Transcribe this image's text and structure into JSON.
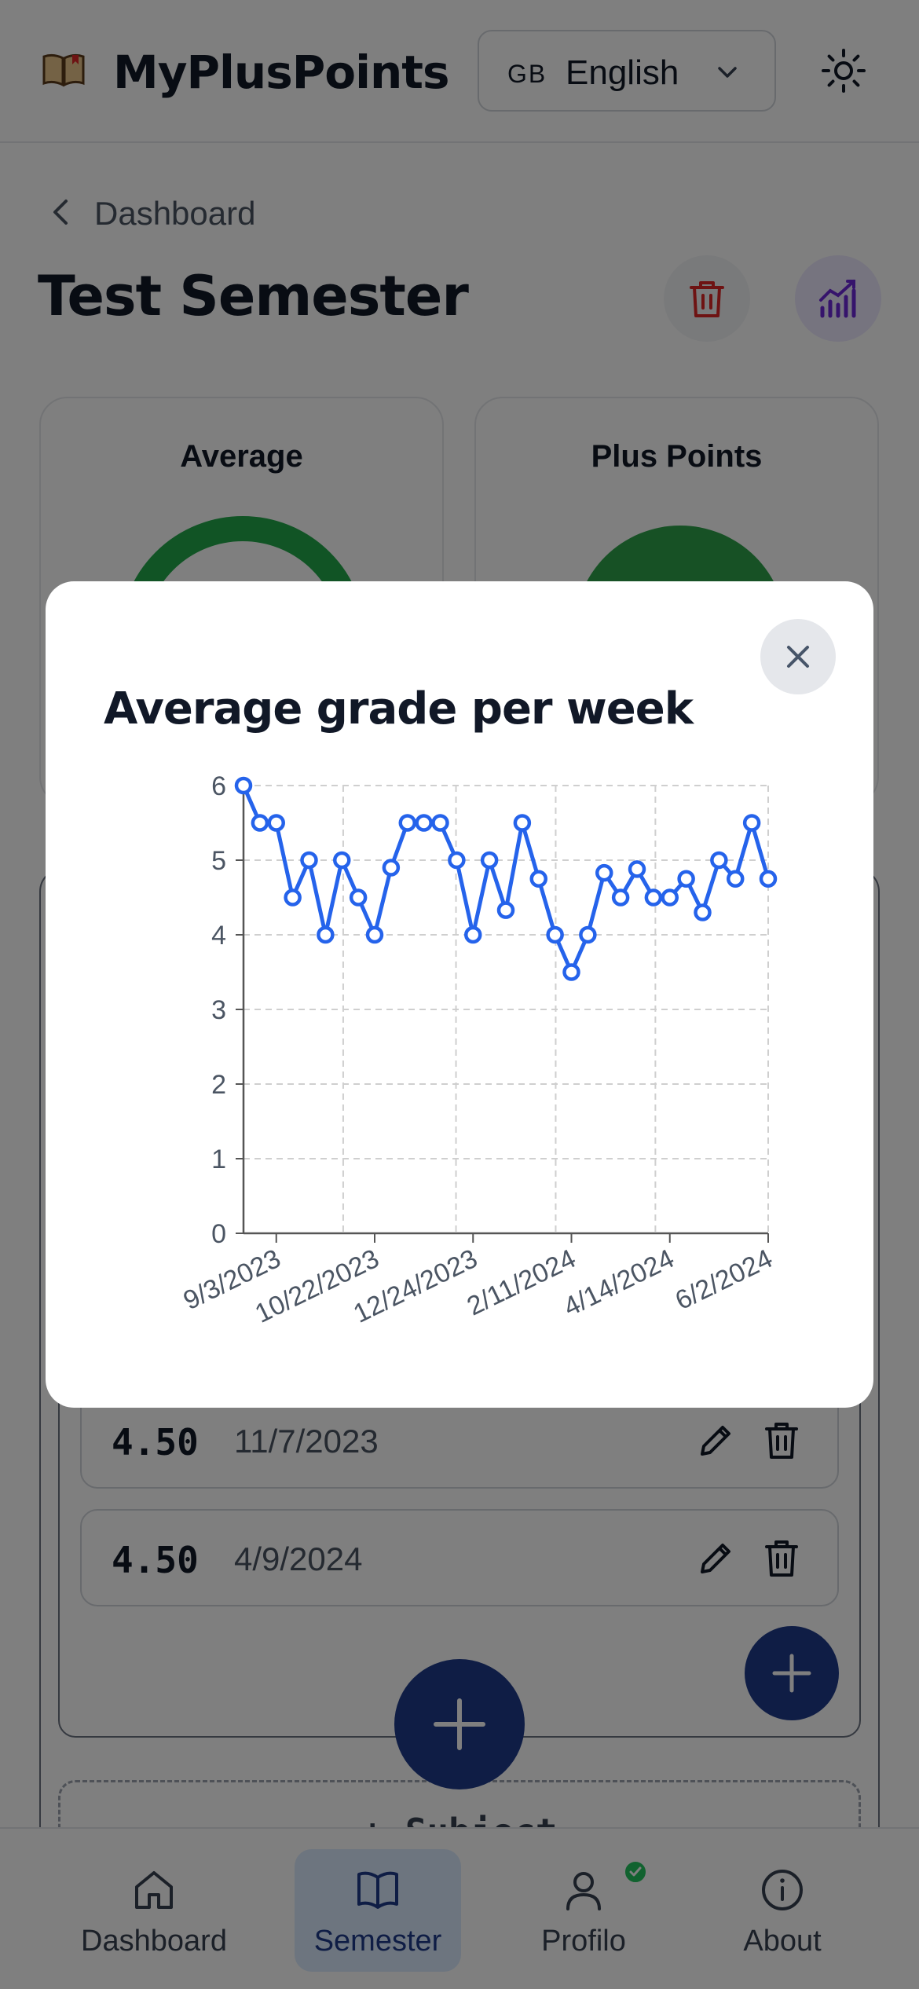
{
  "header": {
    "app_title": "MyPlusPoints",
    "language": {
      "flag": "GB",
      "label": "English"
    }
  },
  "breadcrumb": {
    "label": "Dashboard"
  },
  "page": {
    "title": "Test Semester",
    "cards": {
      "average_title": "Average",
      "plus_points_title": "Plus Points"
    }
  },
  "grades": [
    {
      "value": "4.50",
      "date": "11/7/2023"
    },
    {
      "value": "4.50",
      "date": "4/9/2024"
    }
  ],
  "add_subject_label": "+ Subject",
  "nav": {
    "items": [
      {
        "label": "Dashboard"
      },
      {
        "label": "Semester"
      },
      {
        "label": "Profilo"
      },
      {
        "label": "About"
      }
    ]
  },
  "colors": {
    "line": "#2563eb",
    "accent_navy": "#1e3a8a",
    "success": "#22c55e",
    "danger": "#dc2626",
    "purple": "#6d28d9"
  },
  "modal": {
    "title": "Average grade per week",
    "chart_data": {
      "type": "line",
      "title": "Average grade per week",
      "xlabel": "",
      "ylabel": "",
      "ylim": [
        0,
        6
      ],
      "yticks": [
        0,
        1,
        2,
        3,
        4,
        5,
        6
      ],
      "xticks": [
        "9/3/2023",
        "10/22/2023",
        "12/24/2023",
        "2/11/2024",
        "4/14/2024",
        "6/2/2024"
      ],
      "grid": true,
      "series": [
        {
          "values": [
            6,
            5.5,
            5.5,
            4.5,
            5,
            4,
            5,
            4.5,
            4,
            4.9,
            5.5,
            5.5,
            5.5,
            5,
            4,
            5,
            4.33,
            5.5,
            4.75,
            4,
            3.5,
            4,
            4.83,
            4.5,
            4.88,
            4.5,
            4.5,
            4.75,
            4.3,
            5,
            4.75,
            5.5,
            4.75
          ]
        }
      ]
    }
  }
}
